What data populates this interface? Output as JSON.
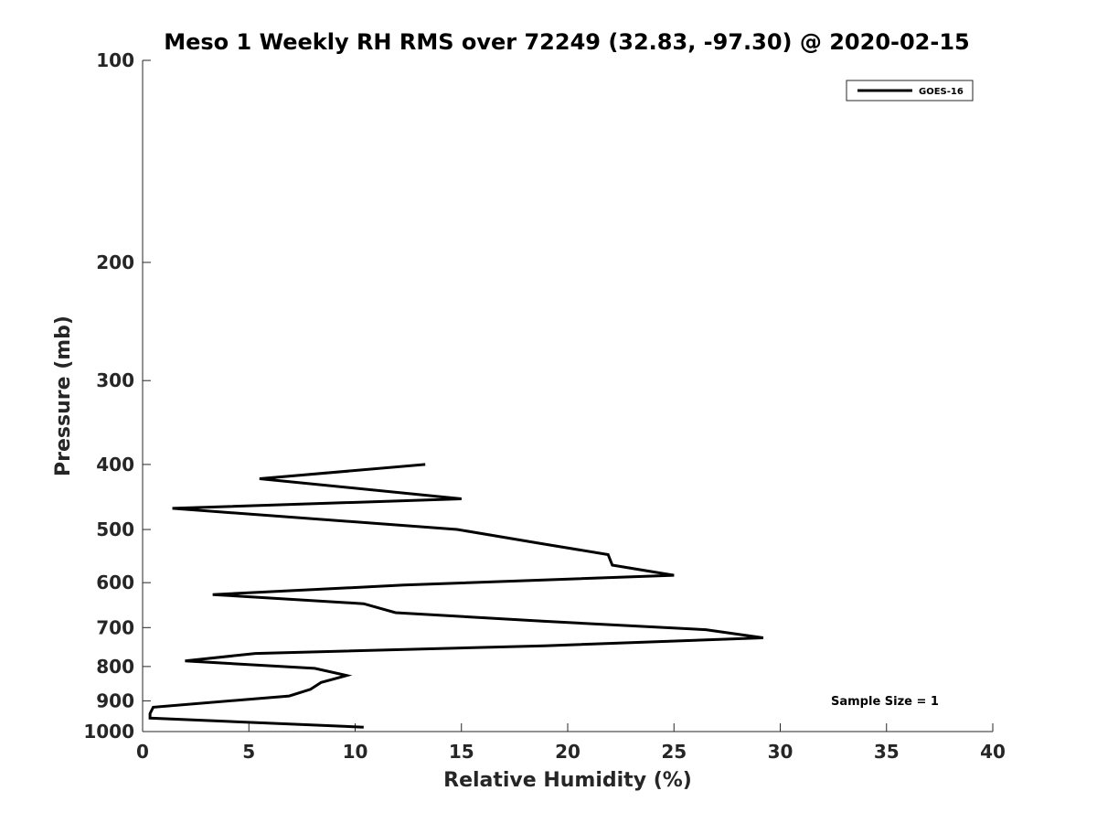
{
  "chart_data": {
    "type": "line",
    "title": "Meso 1 Weekly RH RMS over 72249 (32.83, -97.30) @ 2020-02-15",
    "xlabel": "Relative Humidity (%)",
    "ylabel": "Pressure (mb)",
    "xlim": [
      0,
      40
    ],
    "ylim": [
      1000,
      100
    ],
    "y_scale": "log",
    "y_reversed": true,
    "xticks": [
      0,
      5,
      10,
      15,
      20,
      25,
      30,
      35,
      40
    ],
    "yticks": [
      100,
      200,
      300,
      400,
      500,
      600,
      700,
      800,
      900,
      1000
    ],
    "grid": false,
    "legend_position": "top-right",
    "annotation": "Sample Size = 1",
    "series": [
      {
        "name": "GOES-16",
        "color": "#000000",
        "x": [
          13.3,
          5.5,
          15.0,
          1.4,
          14.8,
          18.8,
          21.9,
          22.1,
          25.0,
          12.3,
          3.3,
          10.4,
          11.9,
          18.9,
          26.5,
          29.2,
          18.9,
          5.3,
          2.0,
          8.1,
          9.6,
          8.4,
          7.9,
          6.9,
          0.5,
          0.35,
          0.35,
          10.4
        ],
        "y": [
          400,
          420,
          450,
          465,
          500,
          525,
          545,
          565,
          585,
          605,
          625,
          645,
          665,
          685,
          705,
          725,
          745,
          765,
          785,
          805,
          825,
          845,
          865,
          885,
          920,
          940,
          955,
          985
        ]
      }
    ]
  }
}
